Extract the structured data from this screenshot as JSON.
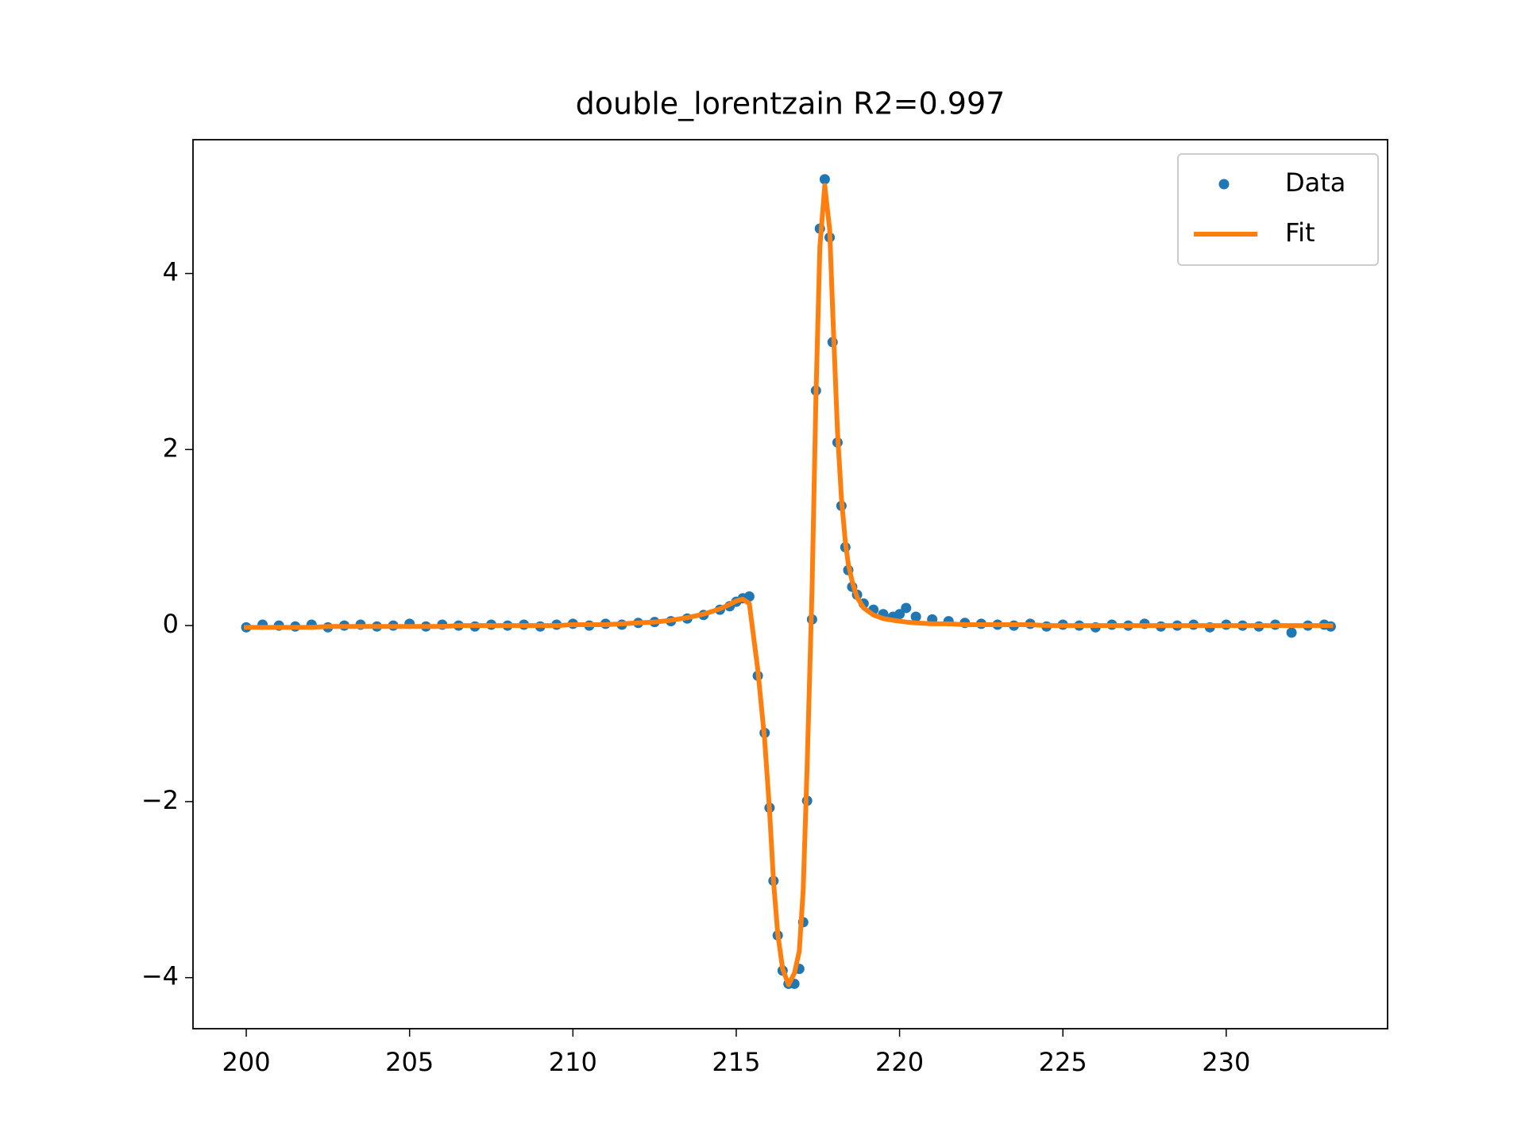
{
  "chart_data": {
    "type": "line",
    "title": "double_lorentzain R2=0.997",
    "x": [
      200,
      200.5,
      201,
      201.5,
      202,
      202.5,
      203,
      203.5,
      204,
      204.5,
      205,
      205.5,
      206,
      206.5,
      207,
      207.5,
      208,
      208.5,
      209,
      209.5,
      210,
      210.5,
      211,
      211.5,
      212,
      212.5,
      213,
      213.5,
      214,
      214.5,
      214.8,
      215,
      215.2,
      215.4,
      215.66,
      215.87,
      216.02,
      216.14,
      216.27,
      216.42,
      216.6,
      216.78,
      216.93,
      217.05,
      217.17,
      217.32,
      217.44,
      217.56,
      217.71,
      217.86,
      217.95,
      218.1,
      218.22,
      218.34,
      218.43,
      218.55,
      218.7,
      218.9,
      219.2,
      219.5,
      219.8,
      220,
      220.2,
      220.5,
      221,
      221.5,
      222,
      222.5,
      223,
      223.5,
      224,
      224.5,
      225,
      225.5,
      226,
      226.5,
      227,
      227.5,
      228,
      228.5,
      229,
      229.5,
      230,
      230.5,
      231,
      231.5,
      232,
      232.5,
      233,
      233.2
    ],
    "series": [
      {
        "name": "Data",
        "color": "#1f77b4",
        "style": "markers",
        "values": [
          -0.02,
          0.01,
          0,
          -0.01,
          0.01,
          -0.02,
          0,
          0.01,
          -0.01,
          0,
          0.02,
          -0.01,
          0.01,
          0,
          -0.01,
          0.01,
          0,
          0.01,
          -0.01,
          0.01,
          0.02,
          0,
          0.02,
          0.01,
          0.03,
          0.04,
          0.05,
          0.08,
          0.12,
          0.18,
          0.22,
          0.27,
          0.31,
          0.33,
          -0.57,
          -1.22,
          -2.07,
          -2.9,
          -3.52,
          -3.92,
          -4.07,
          -4.07,
          -3.9,
          -3.37,
          -1.99,
          0.07,
          2.67,
          4.51,
          5.07,
          4.41,
          3.22,
          2.08,
          1.36,
          0.89,
          0.63,
          0.44,
          0.35,
          0.25,
          0.18,
          0.13,
          0.1,
          0.13,
          0.2,
          0.1,
          0.07,
          0.05,
          0.03,
          0.02,
          0.01,
          0,
          0.02,
          -0.01,
          0.01,
          0,
          -0.02,
          0.01,
          0,
          0.02,
          -0.01,
          0,
          0.01,
          -0.02,
          0.01,
          0,
          -0.01,
          0.01,
          -0.08,
          0,
          0.01,
          -0.01
        ]
      },
      {
        "name": "Fit",
        "color": "#ff7f0e",
        "style": "line",
        "values": [
          -0.02,
          -0.02,
          -0.02,
          -0.02,
          -0.02,
          -0.01,
          -0.01,
          -0.01,
          -0.01,
          -0.01,
          -0.01,
          -0.01,
          -0.01,
          0,
          0,
          0,
          0,
          0,
          0,
          0,
          0.01,
          0.01,
          0.01,
          0.02,
          0.03,
          0.04,
          0.06,
          0.09,
          0.13,
          0.19,
          0.24,
          0.28,
          0.3,
          0.25,
          -0.5,
          -1.3,
          -2.1,
          -2.9,
          -3.5,
          -3.9,
          -4.08,
          -3.95,
          -3.7,
          -3.0,
          -1.6,
          0.4,
          2.6,
          4.3,
          5.0,
          4.5,
          3.6,
          2.2,
          1.45,
          0.95,
          0.7,
          0.5,
          0.32,
          0.2,
          0.12,
          0.08,
          0.06,
          0.05,
          0.04,
          0.03,
          0.02,
          0.02,
          0.01,
          0.01,
          0.01,
          0.01,
          0.01,
          0,
          0,
          0,
          0,
          0,
          0,
          0,
          0,
          0,
          0,
          0,
          0,
          0,
          0,
          0,
          0,
          0,
          0,
          0
        ]
      }
    ],
    "xlim": [
      198.37,
      234.94
    ],
    "ylim": [
      -4.58,
      5.52
    ],
    "xticks": [
      200,
      205,
      210,
      215,
      220,
      225,
      230
    ],
    "yticks": [
      {
        "value": -4,
        "label": "−4"
      },
      {
        "value": -2,
        "label": "−2"
      },
      0,
      2,
      4
    ],
    "legend": "upper right"
  }
}
